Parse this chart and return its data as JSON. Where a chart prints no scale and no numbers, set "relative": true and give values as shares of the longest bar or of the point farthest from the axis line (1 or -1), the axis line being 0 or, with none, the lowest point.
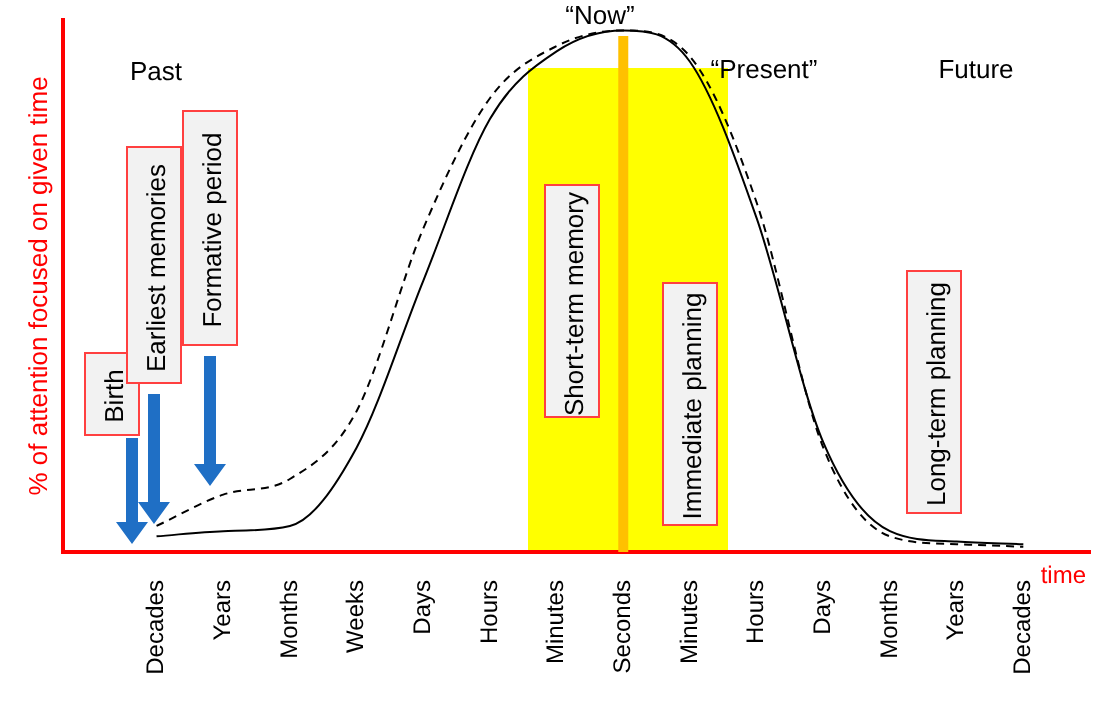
{
  "chart_data": {
    "type": "line",
    "relative": true,
    "ylabel": "% of attention focused on given time",
    "xlabel": "time",
    "categories": [
      "Decades",
      "Years",
      "Months",
      "Weeks",
      "Days",
      "Hours",
      "Minutes",
      "Seconds",
      "Minutes",
      "Hours",
      "Days",
      "Months",
      "Years",
      "Decades"
    ],
    "series": [
      {
        "color": "#000000",
        "line_style": "solid",
        "values": [
          0.03,
          0.04,
          0.05,
          0.2,
          0.52,
          0.83,
          0.96,
          1,
          0.94,
          0.64,
          0.21,
          0.04,
          0.02,
          0.015
        ]
      },
      {
        "color": "#000000",
        "line_style": "dashed",
        "values": [
          0.05,
          0.11,
          0.14,
          0.27,
          0.62,
          0.87,
          0.97,
          1,
          0.95,
          0.67,
          0.2,
          0.03,
          0.015,
          0.01
        ]
      }
    ],
    "marker": "none",
    "grid": false,
    "legend": false,
    "ref_lines": [
      {
        "axis": "x",
        "value": "Seconds",
        "color": "#ffc000"
      }
    ],
    "annotations": [
      "Past",
      "“Now”",
      "“Present”",
      "Future",
      "Birth",
      "Earliest memories",
      "Formative period",
      "Short-term memory",
      "Immediate planning",
      "Long-term planning"
    ]
  }
}
